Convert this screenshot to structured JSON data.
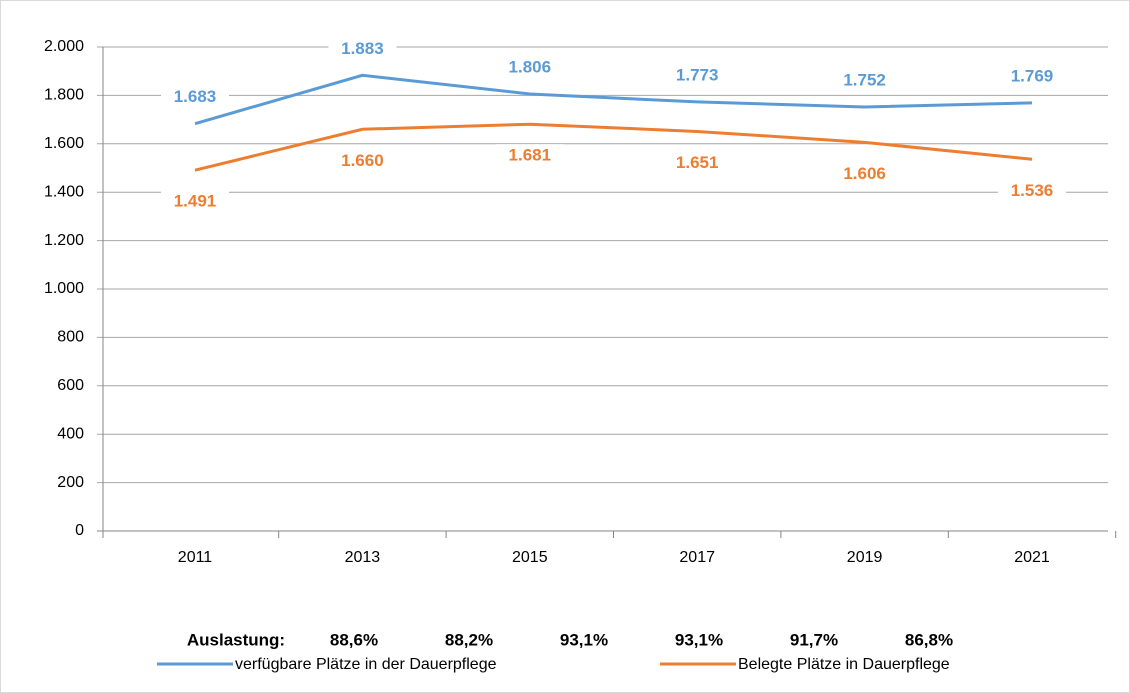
{
  "chart_data": {
    "type": "line",
    "categories": [
      "2011",
      "2013",
      "2015",
      "2017",
      "2019",
      "2021"
    ],
    "series": [
      {
        "name": "verfügbare Plätze in der Dauerpflege",
        "color": "#5b9bd5",
        "values": [
          1683,
          1883,
          1806,
          1773,
          1752,
          1769
        ],
        "value_labels": [
          "1.683",
          "1.883",
          "1.806",
          "1.773",
          "1.752",
          "1.769"
        ]
      },
      {
        "name": "Belegte Plätze in Dauerpflege",
        "color": "#ed7d31",
        "values": [
          1491,
          1660,
          1681,
          1651,
          1606,
          1536
        ],
        "value_labels": [
          "1.491",
          "1.660",
          "1.681",
          "1.651",
          "1.606",
          "1.536"
        ]
      }
    ],
    "ylim": [
      0,
      2000
    ],
    "yticks": [
      0,
      200,
      400,
      600,
      800,
      {
        "value": 1000,
        "label": "1.000"
      },
      {
        "value": 1200,
        "label": "1.200"
      },
      {
        "value": 1400,
        "label": "1.400"
      },
      {
        "value": 1600,
        "label": "1.600"
      },
      {
        "value": 1800,
        "label": "1.800"
      },
      {
        "value": 2000,
        "label": "2.000"
      }
    ],
    "grid": true,
    "utilization": {
      "label": "Auslastung:",
      "values": [
        "88,6%",
        "88,2%",
        "93,1%",
        "93,1%",
        "91,7%",
        "86,8%"
      ]
    }
  }
}
